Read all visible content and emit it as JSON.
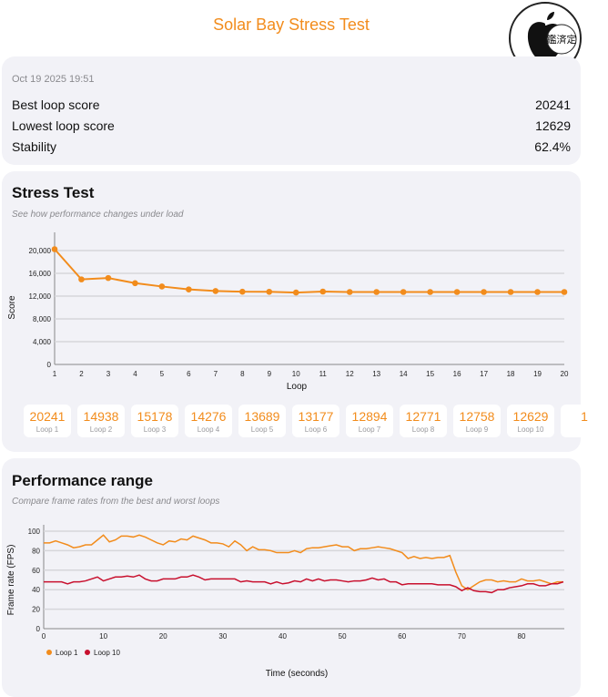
{
  "header": {
    "title": "Solar Bay Stress Test",
    "badge_text": "鑑済定"
  },
  "summary": {
    "date": "Oct 19 2025 19:51",
    "rows": [
      {
        "label": "Best loop score",
        "value": "20241"
      },
      {
        "label": "Lowest loop score",
        "value": "12629"
      },
      {
        "label": "Stability",
        "value": "62.4%"
      }
    ]
  },
  "stress": {
    "title": "Stress Test",
    "subtitle": "See how performance changes under load",
    "loop_cards": [
      {
        "v": "20241",
        "l": "Loop 1"
      },
      {
        "v": "14938",
        "l": "Loop 2"
      },
      {
        "v": "15178",
        "l": "Loop 3"
      },
      {
        "v": "14276",
        "l": "Loop 4"
      },
      {
        "v": "13689",
        "l": "Loop 5"
      },
      {
        "v": "13177",
        "l": "Loop 6"
      },
      {
        "v": "12894",
        "l": "Loop 7"
      },
      {
        "v": "12771",
        "l": "Loop 8"
      },
      {
        "v": "12758",
        "l": "Loop 9"
      },
      {
        "v": "12629",
        "l": "Loop 10"
      },
      {
        "v": "1",
        "l": ""
      }
    ]
  },
  "range": {
    "title": "Performance range",
    "subtitle": "Compare frame rates from the best and worst loops"
  },
  "chart_data": [
    {
      "type": "line",
      "xlabel": "Loop",
      "ylabel": "Score",
      "xlim": [
        1,
        20
      ],
      "ylim": [
        0,
        22000
      ],
      "yticks": [
        0,
        4000,
        8000,
        12000,
        16000,
        20000
      ],
      "ytick_labels": [
        "0",
        "4,000",
        "8,000",
        "12,000",
        "16,000",
        "20,000"
      ],
      "x": [
        1,
        2,
        3,
        4,
        5,
        6,
        7,
        8,
        9,
        10,
        11,
        12,
        13,
        14,
        15,
        16,
        17,
        18,
        19,
        20
      ],
      "values": [
        20241,
        14938,
        15178,
        14276,
        13689,
        13177,
        12894,
        12771,
        12758,
        12629,
        12800,
        12720,
        12720,
        12720,
        12720,
        12720,
        12720,
        12720,
        12720,
        12720
      ],
      "color": "#f28c1c",
      "grid": true
    },
    {
      "type": "line",
      "xlabel": "Time (seconds)",
      "ylabel": "Frame rate (FPS)",
      "xlim": [
        0,
        87
      ],
      "ylim": [
        0,
        105
      ],
      "xticks": [
        0,
        10,
        20,
        30,
        40,
        50,
        60,
        70,
        80
      ],
      "yticks": [
        0,
        20,
        40,
        60,
        80,
        100
      ],
      "legend": "bottom-left",
      "grid": true,
      "series": [
        {
          "name": "Loop 1",
          "color": "#f28c1c",
          "values": [
            88,
            88,
            90,
            88,
            86,
            83,
            84,
            86,
            86,
            91,
            96,
            89,
            91,
            95,
            95,
            94,
            96,
            94,
            91,
            88,
            86,
            90,
            89,
            92,
            91,
            95,
            93,
            91,
            88,
            88,
            87,
            84,
            90,
            86,
            80,
            84,
            81,
            81,
            80,
            78,
            78,
            78,
            80,
            78,
            82,
            83,
            83,
            84,
            85,
            86,
            84,
            84,
            80,
            82,
            82,
            83,
            84,
            83,
            82,
            80,
            78,
            72,
            74,
            72,
            73,
            72,
            73,
            73,
            75,
            58,
            44,
            40,
            44,
            48,
            50,
            50,
            48,
            49,
            48,
            48,
            51,
            49,
            49,
            50,
            48,
            46,
            48,
            48
          ]
        },
        {
          "name": "Loop 10",
          "color": "#c8102e",
          "values": [
            48,
            48,
            48,
            48,
            46,
            48,
            48,
            49,
            51,
            53,
            49,
            51,
            53,
            53,
            54,
            53,
            55,
            51,
            49,
            49,
            51,
            51,
            51,
            53,
            53,
            55,
            53,
            50,
            51,
            51,
            51,
            51,
            51,
            48,
            49,
            48,
            48,
            48,
            46,
            48,
            46,
            47,
            49,
            48,
            51,
            49,
            51,
            49,
            50,
            50,
            49,
            48,
            49,
            49,
            50,
            52,
            50,
            51,
            48,
            48,
            45,
            46,
            46,
            46,
            46,
            46,
            45,
            45,
            45,
            43,
            39,
            42,
            39,
            38,
            38,
            37,
            40,
            40,
            42,
            43,
            44,
            46,
            46,
            44,
            44,
            46,
            46,
            48
          ]
        }
      ]
    }
  ]
}
